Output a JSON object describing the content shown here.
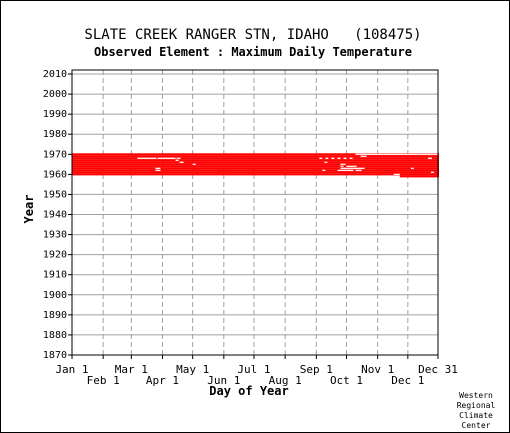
{
  "credit": [
    "Western",
    "Regional",
    "Climate",
    "Center"
  ],
  "chart_data": {
    "type": "scatter",
    "title": "SLATE CREEK RANGER STN, IDAHO   (108475)",
    "subtitle": "Observed Element : Maximum Daily Temperature",
    "xlabel": "Day of Year",
    "ylabel": "Year",
    "xlim": [
      1,
      365
    ],
    "ylim": [
      1870,
      2012
    ],
    "grid": true,
    "colors": {
      "data": "#ff0000",
      "grid": "#a0a0a0",
      "axis": "#000000"
    },
    "x_ticks_upper": [
      {
        "label": "Jan 1",
        "day": 1
      },
      {
        "label": "Mar 1",
        "day": 60
      },
      {
        "label": "May 1",
        "day": 121
      },
      {
        "label": "Jul 1",
        "day": 182
      },
      {
        "label": "Sep 1",
        "day": 244
      },
      {
        "label": "Nov 1",
        "day": 305
      },
      {
        "label": "Dec 31",
        "day": 365
      }
    ],
    "x_ticks_lower": [
      {
        "label": "Feb 1",
        "day": 32
      },
      {
        "label": "Apr 1",
        "day": 91
      },
      {
        "label": "Jun 1",
        "day": 152
      },
      {
        "label": "Aug 1",
        "day": 213
      },
      {
        "label": "Oct 1",
        "day": 274
      },
      {
        "label": "Dec 1",
        "day": 335
      }
    ],
    "y_ticks": [
      1870,
      1880,
      1890,
      1900,
      1910,
      1920,
      1930,
      1940,
      1950,
      1960,
      1970,
      1980,
      1990,
      2000,
      2010
    ],
    "observed_record": {
      "first_year": 1960,
      "last_year": 1970,
      "first_day": 1,
      "last_day": 365
    },
    "partial_last_year": {
      "year": 1959,
      "start_day": 327,
      "end_day": 365
    },
    "gaps": [
      {
        "year": 1968,
        "start_day": 66,
        "end_day": 84
      },
      {
        "year": 1968,
        "start_day": 86,
        "end_day": 103
      },
      {
        "year": 1968,
        "start_day": 105,
        "end_day": 108
      },
      {
        "year": 1967,
        "start_day": 104,
        "end_day": 106
      },
      {
        "year": 1966,
        "start_day": 108,
        "end_day": 111
      },
      {
        "year": 1965,
        "start_day": 121,
        "end_day": 123
      },
      {
        "year": 1963,
        "start_day": 84,
        "end_day": 88
      },
      {
        "year": 1962,
        "start_day": 84,
        "end_day": 88
      },
      {
        "year": 1968,
        "start_day": 247,
        "end_day": 249
      },
      {
        "year": 1968,
        "start_day": 253,
        "end_day": 255
      },
      {
        "year": 1968,
        "start_day": 259,
        "end_day": 261
      },
      {
        "year": 1968,
        "start_day": 265,
        "end_day": 267
      },
      {
        "year": 1968,
        "start_day": 271,
        "end_day": 273
      },
      {
        "year": 1968,
        "start_day": 277,
        "end_day": 279
      },
      {
        "year": 1966,
        "start_day": 252,
        "end_day": 254
      },
      {
        "year": 1965,
        "start_day": 268,
        "end_day": 272
      },
      {
        "year": 1964,
        "start_day": 268,
        "end_day": 270
      },
      {
        "year": 1964,
        "start_day": 274,
        "end_day": 283
      },
      {
        "year": 1963,
        "start_day": 268,
        "end_day": 291
      },
      {
        "year": 1962,
        "start_day": 250,
        "end_day": 252
      },
      {
        "year": 1962,
        "start_day": 265,
        "end_day": 280
      },
      {
        "year": 1962,
        "start_day": 283,
        "end_day": 288
      },
      {
        "year": 1970,
        "start_day": 283,
        "end_day": 365
      },
      {
        "year": 1969,
        "start_day": 288,
        "end_day": 293
      },
      {
        "year": 1968,
        "start_day": 355,
        "end_day": 358
      },
      {
        "year": 1963,
        "start_day": 338,
        "end_day": 340
      },
      {
        "year": 1961,
        "start_day": 358,
        "end_day": 360
      },
      {
        "year": 1960,
        "start_day": 321,
        "end_day": 326
      }
    ]
  }
}
